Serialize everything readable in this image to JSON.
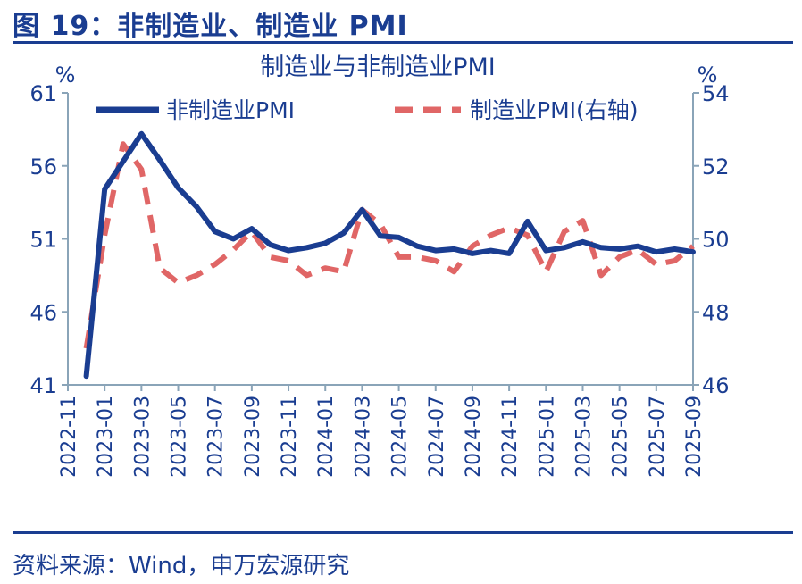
{
  "figure": {
    "title": "图 19：非制造业、制造业 PMI",
    "source": "资料来源：Wind，申万宏源研究"
  },
  "colors": {
    "primary": "#1a3d91",
    "series_nonmanufacturing": "#1a3d91",
    "series_manufacturing": "#e06666"
  },
  "chart_data": {
    "type": "line",
    "title": "制造业与非制造业PMI",
    "y_unit_left": "%",
    "y_unit_right": "%",
    "x_ticks": [
      "2022-11",
      "2023-01",
      "2023-03",
      "2023-05",
      "2023-07",
      "2023-09",
      "2023-11",
      "2024-01",
      "2024-03",
      "2024-05",
      "2024-07",
      "2024-09",
      "2024-11",
      "2025-01",
      "2025-03",
      "2025-05",
      "2025-07",
      "2025-09"
    ],
    "ylim_left": [
      41,
      61
    ],
    "yticks_left": [
      "41",
      "46",
      "51",
      "56",
      "61"
    ],
    "ylim_right": [
      46,
      54
    ],
    "yticks_right": [
      "46",
      "48",
      "50",
      "52",
      "54"
    ],
    "legend_position": "top",
    "x": [
      "2022-12",
      "2023-01",
      "2023-02",
      "2023-03",
      "2023-04",
      "2023-05",
      "2023-06",
      "2023-07",
      "2023-08",
      "2023-09",
      "2023-10",
      "2023-11",
      "2023-12",
      "2024-01",
      "2024-02",
      "2024-03",
      "2024-04",
      "2024-05",
      "2024-06",
      "2024-07",
      "2024-08",
      "2024-09",
      "2024-10",
      "2024-11",
      "2024-12",
      "2025-01",
      "2025-02",
      "2025-03",
      "2025-04",
      "2025-05",
      "2025-06",
      "2025-07",
      "2025-08",
      "2025-09"
    ],
    "series": [
      {
        "name": "非制造业PMI",
        "axis": "left",
        "style": "solid",
        "values": [
          41.6,
          54.4,
          56.3,
          58.2,
          56.4,
          54.5,
          53.2,
          51.5,
          51.0,
          51.7,
          50.6,
          50.2,
          50.4,
          50.7,
          51.4,
          53.0,
          51.2,
          51.1,
          50.5,
          50.2,
          50.3,
          50.0,
          50.2,
          50.0,
          52.2,
          50.2,
          50.4,
          50.8,
          50.4,
          50.3,
          50.5,
          50.1,
          50.3,
          50.1
        ]
      },
      {
        "name": "制造业PMI(右轴)",
        "axis": "right",
        "style": "dashed",
        "values": [
          47.0,
          50.1,
          52.6,
          51.9,
          49.2,
          48.8,
          49.0,
          49.3,
          49.7,
          50.2,
          49.5,
          49.4,
          49.0,
          49.2,
          49.1,
          50.8,
          50.4,
          49.5,
          49.5,
          49.4,
          49.1,
          49.8,
          50.1,
          50.3,
          50.1,
          49.1,
          50.2,
          50.5,
          49.0,
          49.5,
          49.7,
          49.3,
          49.4,
          49.8
        ]
      }
    ]
  }
}
